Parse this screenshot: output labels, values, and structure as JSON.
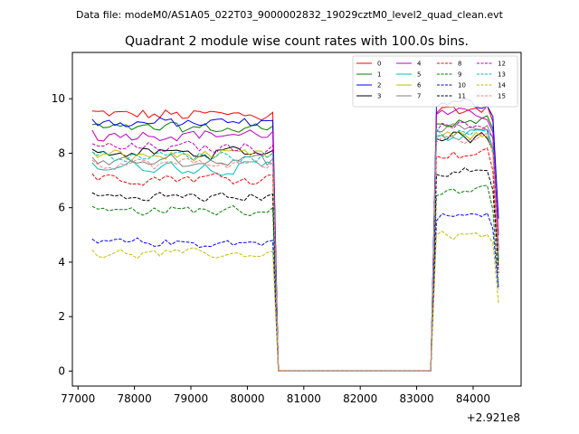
{
  "chart_data": {
    "type": "line",
    "suptitle": "Data file: modeM0/AS1A05_022T03_9000002832_19029cztM0_level2_quad_clean.evt",
    "title": "Quadrant 2 module wise count rates with 100.0s bins.",
    "xlabel": "",
    "ylabel": "",
    "x_offset_label": "+2.921e8",
    "x_offset": 292100000,
    "xlim": [
      76900,
      84850
    ],
    "ylim": [
      -0.55,
      11.7
    ],
    "x_ticks": [
      77000,
      78000,
      79000,
      80000,
      81000,
      82000,
      83000,
      84000
    ],
    "x_tick_labels": [
      "77000",
      "78000",
      "79000",
      "80000",
      "81000",
      "82000",
      "83000",
      "84000"
    ],
    "y_ticks": [
      0,
      2,
      4,
      6,
      8,
      10
    ],
    "y_tick_labels": [
      "0",
      "2",
      "4",
      "6",
      "8",
      "10"
    ],
    "grid": false,
    "legend_position": "upper right",
    "segment1": {
      "x_start": 77250,
      "x_end": 80450,
      "step": 100
    },
    "segment2": {
      "x_start": 83350,
      "x_end": 84450,
      "step": 100
    },
    "gap": {
      "x_start": 80550,
      "x_end": 83250,
      "value": 0
    },
    "series": [
      {
        "name": "0",
        "color": "#ff0000",
        "dash": "solid",
        "level1": 9.4,
        "level2": 9.6,
        "tail": 4.0,
        "spread": 0.35
      },
      {
        "name": "1",
        "color": "#008000",
        "dash": "solid",
        "level1": 8.9,
        "level2": 9.2,
        "tail": 4.5,
        "spread": 0.3
      },
      {
        "name": "2",
        "color": "#0000ff",
        "dash": "solid",
        "level1": 9.1,
        "level2": 9.8,
        "tail": 5.6,
        "spread": 0.3
      },
      {
        "name": "3",
        "color": "#000000",
        "dash": "solid",
        "level1": 8.0,
        "level2": 8.6,
        "tail": 4.0,
        "spread": 0.3
      },
      {
        "name": "4",
        "color": "#bf00bf",
        "dash": "solid",
        "level1": 8.7,
        "level2": 9.4,
        "tail": 5.0,
        "spread": 0.3
      },
      {
        "name": "5",
        "color": "#00bfbf",
        "dash": "solid",
        "level1": 7.5,
        "level2": 8.7,
        "tail": 4.2,
        "spread": 0.35
      },
      {
        "name": "6",
        "color": "#bfbf00",
        "dash": "solid",
        "level1": 7.9,
        "level2": 8.6,
        "tail": 4.0,
        "spread": 0.3
      },
      {
        "name": "7",
        "color": "#808080",
        "dash": "solid",
        "level1": 7.7,
        "level2": 9.0,
        "tail": 4.6,
        "spread": 0.3
      },
      {
        "name": "8",
        "color": "#ff0000",
        "dash": "dashed",
        "level1": 7.1,
        "level2": 8.0,
        "tail": 3.6,
        "spread": 0.3
      },
      {
        "name": "9",
        "color": "#008000",
        "dash": "dashed",
        "level1": 5.9,
        "level2": 6.6,
        "tail": 3.1,
        "spread": 0.25
      },
      {
        "name": "10",
        "color": "#0000ff",
        "dash": "dashed",
        "level1": 4.7,
        "level2": 5.7,
        "tail": 3.0,
        "spread": 0.25
      },
      {
        "name": "11",
        "color": "#000000",
        "dash": "dashed",
        "level1": 6.4,
        "level2": 7.3,
        "tail": 3.8,
        "spread": 0.25
      },
      {
        "name": "12",
        "color": "#bf00bf",
        "dash": "dashed",
        "level1": 8.2,
        "level2": 9.0,
        "tail": 4.4,
        "spread": 0.3
      },
      {
        "name": "13",
        "color": "#00bfbf",
        "dash": "dashed",
        "level1": 7.9,
        "level2": 8.8,
        "tail": 4.1,
        "spread": 0.3
      },
      {
        "name": "14",
        "color": "#bfbf00",
        "dash": "dashed",
        "level1": 4.3,
        "level2": 5.0,
        "tail": 2.5,
        "spread": 0.25
      },
      {
        "name": "15",
        "color": "#ff7f7f",
        "dash": "dashed",
        "level1": 7.6,
        "level2": 8.5,
        "tail": 4.3,
        "spread": 0.3
      }
    ]
  }
}
